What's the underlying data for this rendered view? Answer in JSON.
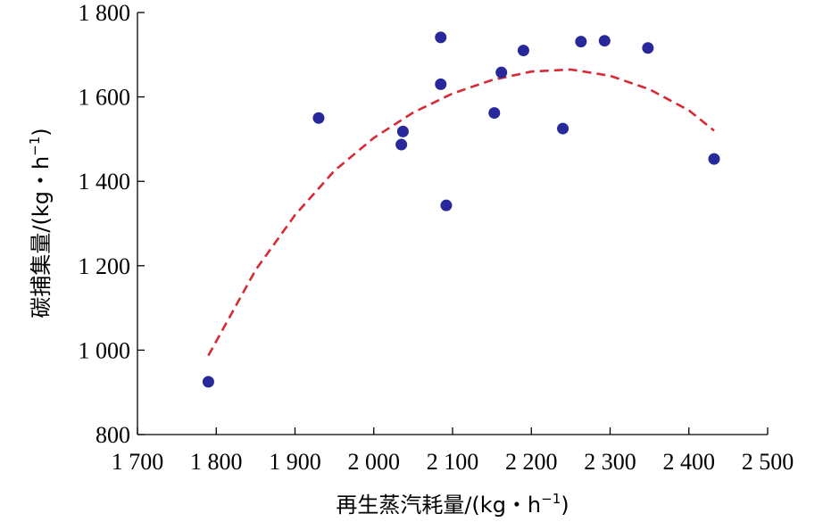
{
  "chart_data": {
    "type": "scatter",
    "xlabel": "再生蒸汽耗量/(kg・h",
    "ylabel": "碳捕集量/(kg・h",
    "label_suffix": ")",
    "unit_superscript": "−1",
    "xlim": [
      1700,
      2500
    ],
    "ylim": [
      800,
      1800
    ],
    "x_ticks": [
      1700,
      1800,
      1900,
      2000,
      2100,
      2200,
      2300,
      2400,
      2500
    ],
    "y_ticks": [
      800,
      1000,
      1200,
      1400,
      1600,
      1800
    ],
    "x_tick_labels": [
      "1 700",
      "1 800",
      "1 900",
      "2 000",
      "2 100",
      "2 200",
      "2 300",
      "2 400",
      "2 500"
    ],
    "y_tick_labels": [
      "800",
      "1 000",
      "1 200",
      "1 400",
      "1 600",
      "1 800"
    ],
    "grid": false,
    "points": [
      {
        "x": 1790,
        "y": 925
      },
      {
        "x": 1930,
        "y": 1550
      },
      {
        "x": 2035,
        "y": 1487
      },
      {
        "x": 2037,
        "y": 1518
      },
      {
        "x": 2085,
        "y": 1741
      },
      {
        "x": 2085,
        "y": 1630
      },
      {
        "x": 2092,
        "y": 1343
      },
      {
        "x": 2153,
        "y": 1562
      },
      {
        "x": 2162,
        "y": 1658
      },
      {
        "x": 2190,
        "y": 1710
      },
      {
        "x": 2240,
        "y": 1525
      },
      {
        "x": 2263,
        "y": 1731
      },
      {
        "x": 2293,
        "y": 1733
      },
      {
        "x": 2348,
        "y": 1716
      },
      {
        "x": 2432,
        "y": 1453
      }
    ],
    "fit_curve": {
      "style": "dashed",
      "points": [
        {
          "x": 1790,
          "y": 987
        },
        {
          "x": 1850,
          "y": 1190
        },
        {
          "x": 1900,
          "y": 1320
        },
        {
          "x": 1950,
          "y": 1425
        },
        {
          "x": 2000,
          "y": 1503
        },
        {
          "x": 2050,
          "y": 1563
        },
        {
          "x": 2100,
          "y": 1608
        },
        {
          "x": 2150,
          "y": 1640
        },
        {
          "x": 2200,
          "y": 1660
        },
        {
          "x": 2250,
          "y": 1665
        },
        {
          "x": 2300,
          "y": 1650
        },
        {
          "x": 2350,
          "y": 1618
        },
        {
          "x": 2400,
          "y": 1568
        },
        {
          "x": 2432,
          "y": 1520
        }
      ]
    },
    "colors": {
      "points": "#27289a",
      "fit": "#d62a35",
      "axis": "#000000"
    }
  }
}
